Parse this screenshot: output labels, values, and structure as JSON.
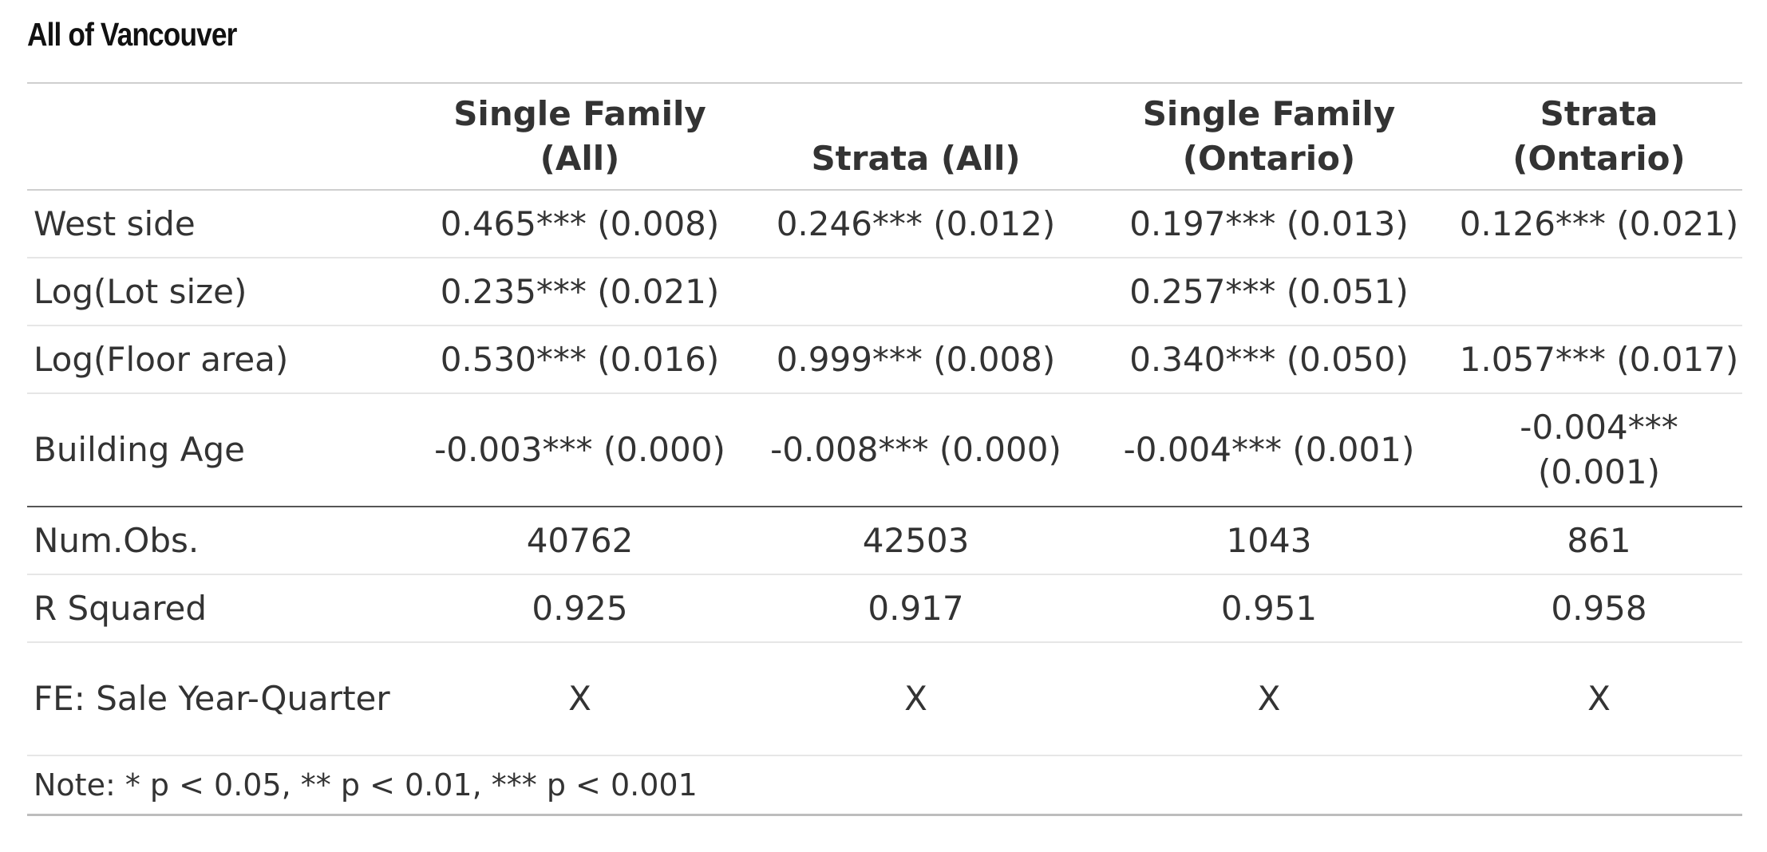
{
  "title": "All of Vancouver",
  "table": {
    "columns": [
      "",
      "Single Family (All)",
      "Strata (All)",
      "Single Family (Ontario)",
      "Strata (Ontario)"
    ],
    "rows": [
      {
        "label": "West side",
        "cells": [
          "0.465*** (0.008)",
          "0.246*** (0.012)",
          "0.197*** (0.013)",
          "0.126*** (0.021)"
        ]
      },
      {
        "label": "Log(Lot size)",
        "cells": [
          "0.235*** (0.021)",
          "",
          "0.257*** (0.051)",
          ""
        ]
      },
      {
        "label": "Log(Floor area)",
        "cells": [
          "0.530*** (0.016)",
          "0.999*** (0.008)",
          "0.340*** (0.050)",
          "1.057*** (0.017)"
        ]
      },
      {
        "label": "Building Age",
        "cells": [
          "-0.003*** (0.000)",
          "-0.008*** (0.000)",
          "-0.004*** (0.001)",
          "-0.004*** (0.001)"
        ]
      },
      {
        "label": "Num.Obs.",
        "cells": [
          "40762",
          "42503",
          "1043",
          "861"
        ]
      },
      {
        "label": "R Squared",
        "cells": [
          "0.925",
          "0.917",
          "0.951",
          "0.958"
        ]
      },
      {
        "label": "FE: Sale Year-Quarter",
        "cells": [
          "X",
          "X",
          "X",
          "X"
        ]
      }
    ],
    "note": "Note: * p < 0.05, ** p < 0.01, *** p < 0.001"
  }
}
